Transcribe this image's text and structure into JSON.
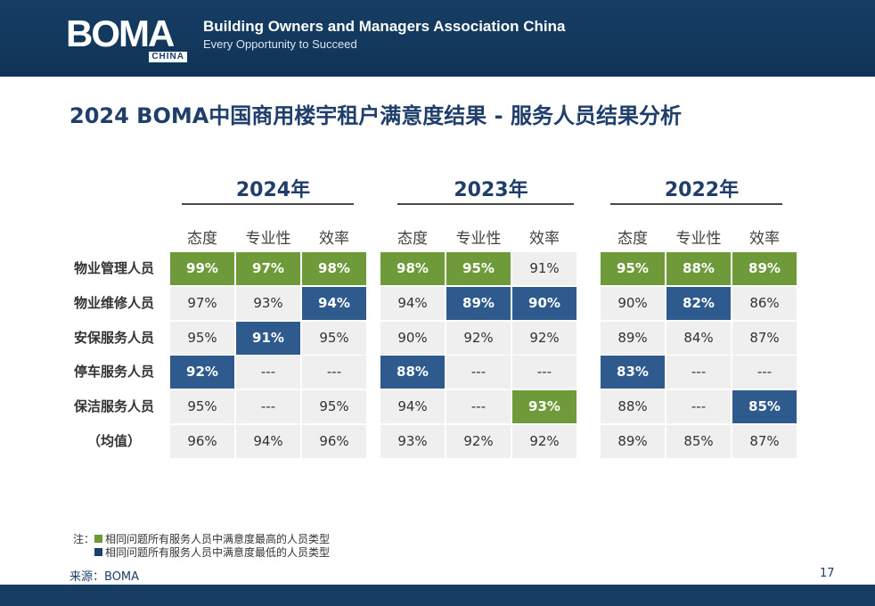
{
  "header": {
    "logo_text": "BOMA",
    "logo_sub": "CHINA",
    "org_name": "Building Owners and Managers Association China",
    "org_tagline": "Every Opportunity to Succeed"
  },
  "title": "2024 BOMA中国商用楼宇租户满意度结果 - 服务人员结果分析",
  "columns": [
    "态度",
    "专业性",
    "效率"
  ],
  "rows": [
    "物业管理人员",
    "物业维修人员",
    "安保服务人员",
    "停车服务人员",
    "保洁服务人员",
    "（均值）"
  ],
  "years": [
    {
      "label": "2024年",
      "cells": [
        [
          {
            "v": "99%",
            "h": "green"
          },
          {
            "v": "97%",
            "h": "green"
          },
          {
            "v": "98%",
            "h": "green"
          }
        ],
        [
          {
            "v": "97%",
            "h": ""
          },
          {
            "v": "93%",
            "h": ""
          },
          {
            "v": "94%",
            "h": "blue"
          }
        ],
        [
          {
            "v": "95%",
            "h": ""
          },
          {
            "v": "91%",
            "h": "blue"
          },
          {
            "v": "95%",
            "h": ""
          }
        ],
        [
          {
            "v": "92%",
            "h": "blue"
          },
          {
            "v": "---",
            "h": ""
          },
          {
            "v": "---",
            "h": ""
          }
        ],
        [
          {
            "v": "95%",
            "h": ""
          },
          {
            "v": "---",
            "h": ""
          },
          {
            "v": "95%",
            "h": ""
          }
        ],
        [
          {
            "v": "96%",
            "h": ""
          },
          {
            "v": "94%",
            "h": ""
          },
          {
            "v": "96%",
            "h": ""
          }
        ]
      ]
    },
    {
      "label": "2023年",
      "cells": [
        [
          {
            "v": "98%",
            "h": "green"
          },
          {
            "v": "95%",
            "h": "green"
          },
          {
            "v": "91%",
            "h": ""
          }
        ],
        [
          {
            "v": "94%",
            "h": ""
          },
          {
            "v": "89%",
            "h": "blue"
          },
          {
            "v": "90%",
            "h": "blue"
          }
        ],
        [
          {
            "v": "90%",
            "h": ""
          },
          {
            "v": "92%",
            "h": ""
          },
          {
            "v": "92%",
            "h": ""
          }
        ],
        [
          {
            "v": "88%",
            "h": "blue"
          },
          {
            "v": "---",
            "h": ""
          },
          {
            "v": "---",
            "h": ""
          }
        ],
        [
          {
            "v": "94%",
            "h": ""
          },
          {
            "v": "---",
            "h": ""
          },
          {
            "v": "93%",
            "h": "green"
          }
        ],
        [
          {
            "v": "93%",
            "h": ""
          },
          {
            "v": "92%",
            "h": ""
          },
          {
            "v": "92%",
            "h": ""
          }
        ]
      ]
    },
    {
      "label": "2022年",
      "cells": [
        [
          {
            "v": "95%",
            "h": "green"
          },
          {
            "v": "88%",
            "h": "green"
          },
          {
            "v": "89%",
            "h": "green"
          }
        ],
        [
          {
            "v": "90%",
            "h": ""
          },
          {
            "v": "82%",
            "h": "blue"
          },
          {
            "v": "86%",
            "h": ""
          }
        ],
        [
          {
            "v": "89%",
            "h": ""
          },
          {
            "v": "84%",
            "h": ""
          },
          {
            "v": "87%",
            "h": ""
          }
        ],
        [
          {
            "v": "83%",
            "h": "blue"
          },
          {
            "v": "---",
            "h": ""
          },
          {
            "v": "---",
            "h": ""
          }
        ],
        [
          {
            "v": "88%",
            "h": ""
          },
          {
            "v": "---",
            "h": ""
          },
          {
            "v": "85%",
            "h": "blue"
          }
        ],
        [
          {
            "v": "89%",
            "h": ""
          },
          {
            "v": "85%",
            "h": ""
          },
          {
            "v": "87%",
            "h": ""
          }
        ]
      ]
    }
  ],
  "notes": {
    "prefix": "注：",
    "highest": "相同问题所有服务人员中满意度最高的人员类型",
    "lowest": "相同问题所有服务人员中满意度最低的人员类型"
  },
  "colors": {
    "highest": "#6f9a3a",
    "lowest": "#2e5a8e",
    "brand": "#173d63"
  },
  "source": "来源：BOMA",
  "page_number": "17"
}
